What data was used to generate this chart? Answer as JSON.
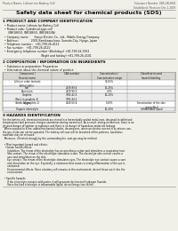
{
  "bg_color": "#f0efe8",
  "header_top_left": "Product Name: Lithium Ion Battery Cell",
  "header_top_right": "Substance Number: SDS-LIB-0001\nEstablished / Revision: Dec.1.2019",
  "main_title": "Safety data sheet for chemical products (SDS)",
  "section1_title": "1 PRODUCT AND COMPANY IDENTIFICATION",
  "section1_lines": [
    "  • Product name: Lithium Ion Battery Cell",
    "  • Product code: Cylindrical-type cell",
    "      (INR18650, INR18650, INR18650A)",
    "  • Company name:      Sanyo Electric Co., Ltd., Mobile Energy Company",
    "  • Address:              2001 Kamikawa-hara, Sumoto-City, Hyogo, Japan",
    "  • Telephone number:   +81-799-26-4111",
    "  • Fax number:   +81-799-26-4120",
    "  • Emergency telephone number (Weekdays) +81-799-26-3962",
    "                                           (Night and holiday) +81-799-26-4101"
  ],
  "section2_title": "2 COMPOSITION / INFORMATION ON INGREDIENTS",
  "section2_sub1": "  • Substance or preparation: Preparation",
  "section2_sub2": "  • Information about the chemical nature of product:",
  "table_headers": [
    "Component /\nSeveral name",
    "CAS number",
    "Concentration /\nConcentration range",
    "Classification and\nhazard labeling"
  ],
  "table_rows": [
    [
      "Lithium oxide tentacle\n(LiMnCoNiO₂)",
      "-",
      "30-60%",
      ""
    ],
    [
      "Iron",
      "7439-89-6",
      "15-25%",
      ""
    ],
    [
      "Aluminum",
      "7429-90-5",
      "2-5%",
      ""
    ],
    [
      "Graphite\n(Rock in graphite-1)\n(Artificial graphite-1)",
      "7782-42-5\n7782-44-2",
      "10-20%",
      ""
    ],
    [
      "Copper",
      "7440-50-8",
      "5-10%",
      "Sensitization of the skin\ngroup No.2"
    ],
    [
      "Organic electrolyte",
      "-",
      "10-20%",
      "Inflammable liquid"
    ]
  ],
  "section3_title": "3 HAZARDS IDENTIFICATION",
  "section3_lines": [
    "For the battery cell, chemical materials are stored in a hermetically sealed metal case, designed to withstand",
    "temperatures and pressure changes-sometimes during normal use. As a result, during normal use, there is no",
    "physical danger of ignition or explosion and there is no danger of hazardous materials leakage.",
    "  When exposed to a fire, added mechanical shocks, decomposes, when an electric current is by misuse use,",
    "the gas inside can not be operated. The battery cell case will be breached of fire-patterns, hazardous",
    "materials may be released.",
    "  Moreover, if heated strongly by the surrounding fire, soot gas may be emitted.",
    "",
    "  • Most important hazard and effects:",
    "    Human health effects:",
    "      Inhalation: The steam of the electrolyte has an anesthesia action and stimulates a respiratory tract.",
    "      Skin contact: The steam of the electrolyte stimulates a skin. The electrolyte skin contact causes a",
    "      sore and stimulation on the skin.",
    "      Eye contact: The steam of the electrolyte stimulates eyes. The electrolyte eye contact causes a sore",
    "      and stimulation on the eye. Especially, a substance that causes a strong inflammation of the eye is",
    "      contained.",
    "      Environmental effects: Since a battery cell remains in the environment, do not throw out it into the",
    "      environment.",
    "",
    "  • Specific hazards:",
    "      If the electrolyte contacts with water, it will generate detrimental hydrogen fluoride.",
    "      Since the lead electrolyte is inflammable liquid, do not bring close to fire."
  ]
}
